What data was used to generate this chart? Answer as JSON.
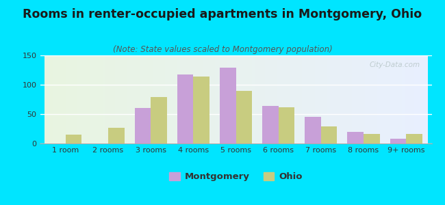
{
  "title": "Rooms in renter-occupied apartments in Montgomery, Ohio",
  "subtitle": "(Note: State values scaled to Montgomery population)",
  "categories": [
    "1 room",
    "2 rooms",
    "3 rooms",
    "4 rooms",
    "5 rooms",
    "6 rooms",
    "7 rooms",
    "8 rooms",
    "9+ rooms"
  ],
  "montgomery_values": [
    0,
    0,
    60,
    117,
    129,
    64,
    45,
    20,
    8
  ],
  "ohio_values": [
    15,
    27,
    79,
    114,
    90,
    62,
    29,
    16,
    16
  ],
  "montgomery_color": "#c8a0d8",
  "ohio_color": "#c8cc80",
  "background_outer": "#00e5ff",
  "ylim": [
    0,
    150
  ],
  "yticks": [
    0,
    50,
    100,
    150
  ],
  "bar_width": 0.38,
  "title_fontsize": 12.5,
  "subtitle_fontsize": 8.5,
  "tick_fontsize": 8,
  "legend_fontsize": 9.5,
  "watermark_text": "City-Data.com"
}
